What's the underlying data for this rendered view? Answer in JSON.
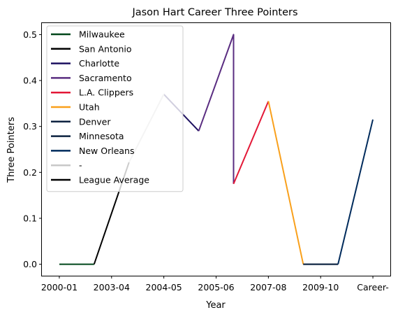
{
  "chart_data": {
    "type": "line",
    "title": "Jason Hart  Career Three Pointers",
    "xlabel": "Year",
    "ylabel": "Three Pointers",
    "ylim": [
      -0.025,
      0.525
    ],
    "yticks": [
      0.0,
      0.1,
      0.2,
      0.3,
      0.4,
      0.5
    ],
    "ytick_labels": [
      "0.0",
      "0.1",
      "0.2",
      "0.3",
      "0.4",
      "0.5"
    ],
    "xlim": [
      -0.5,
      9.5
    ],
    "xticks": [
      0,
      1.5,
      3,
      4.5,
      6,
      7.5,
      9
    ],
    "xtick_labels": [
      "2000-01",
      "2003-04",
      "2004-05",
      "2005-06",
      "2007-08",
      "2009-10",
      "Career-"
    ],
    "grid": false,
    "legend_position": "top-left",
    "series": [
      {
        "name": "Milwaukee",
        "color": "#00471B",
        "points": [
          [
            0,
            0.0
          ],
          [
            1,
            0.0
          ]
        ]
      },
      {
        "name": "San Antonio",
        "color": "#000000",
        "points": [
          [
            1,
            0.0
          ],
          [
            2,
            0.222
          ]
        ]
      },
      {
        "name": "Charlotte",
        "color": "#1D1160",
        "points": [
          [
            3,
            0.37
          ],
          [
            4,
            0.29
          ]
        ]
      },
      {
        "name": "Sacramento",
        "color": "#5A2D81",
        "points": [
          [
            4,
            0.29
          ],
          [
            5,
            0.5
          ],
          [
            5,
            0.175
          ]
        ]
      },
      {
        "name": "L.A. Clippers",
        "color": "#E31837",
        "points": [
          [
            5,
            0.175
          ],
          [
            6,
            0.355
          ]
        ]
      },
      {
        "name": "Utah",
        "color": "#F9A01B",
        "points": [
          [
            6,
            0.355
          ],
          [
            7,
            0.0
          ]
        ]
      },
      {
        "name": "Denver",
        "color": "#0E2240",
        "points": [
          [
            7,
            0.0
          ],
          [
            8,
            0.0
          ]
        ]
      },
      {
        "name": "Minnesota",
        "color": "#0C2340",
        "points": [
          [
            7,
            0.0
          ],
          [
            8,
            0.0
          ]
        ]
      },
      {
        "name": "New Orleans",
        "color": "#002B5C",
        "points": [
          [
            8,
            0.0
          ],
          [
            9,
            0.315
          ]
        ]
      },
      {
        "name": "-",
        "color": "#C8C8C8",
        "points": [
          [
            2,
            0.222
          ],
          [
            3,
            0.37
          ]
        ]
      },
      {
        "name": "League Average",
        "color": "#000000",
        "points": []
      }
    ]
  }
}
